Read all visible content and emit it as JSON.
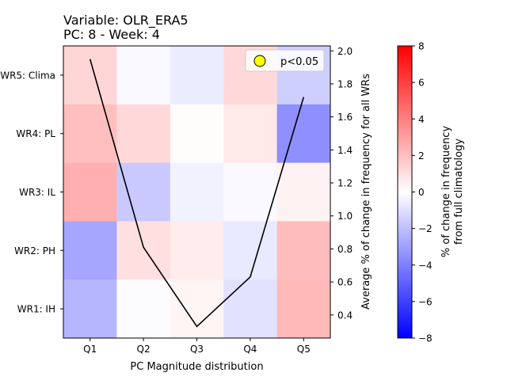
{
  "chart_data": {
    "type": "heatmap",
    "title_lines": [
      "Variable: OLR_ERA5",
      "PC: 8 - Week: 4"
    ],
    "xlabel": "PC Magnitude distribution",
    "categories": [
      "Q1",
      "Q2",
      "Q3",
      "Q4",
      "Q5"
    ],
    "rows": [
      "WR5: Clima",
      "WR4: PL",
      "WR3: IL",
      "WR2: PH",
      "WR1: IH"
    ],
    "values": [
      [
        1.3,
        -0.2,
        -0.6,
        1.2,
        -1.5
      ],
      [
        2.0,
        1.2,
        0.1,
        0.7,
        -3.5
      ],
      [
        2.5,
        -1.7,
        -0.4,
        -0.2,
        0.4
      ],
      [
        -2.8,
        1.0,
        0.6,
        -0.7,
        2.1
      ],
      [
        -2.3,
        -0.1,
        0.3,
        -0.9,
        2.2
      ]
    ],
    "colorbar": {
      "label_lines": [
        "% of change in frequency",
        "from full climatology"
      ],
      "min": -8,
      "max": 8,
      "ticks": [
        -8,
        -6,
        -4,
        -2,
        0,
        2,
        4,
        6,
        8
      ],
      "low_color": "#0000ff",
      "mid_color": "#ffffff",
      "high_color": "#ff0000"
    },
    "line_series": {
      "ylabel": "Average % of change in frequency for all WRs",
      "x": [
        "Q1",
        "Q2",
        "Q3",
        "Q4",
        "Q5"
      ],
      "y": [
        1.95,
        0.81,
        0.33,
        0.63,
        1.72
      ],
      "ylim": [
        0.26,
        2.03
      ],
      "yticks": [
        0.4,
        0.6,
        0.8,
        1.0,
        1.2,
        1.4,
        1.6,
        1.8,
        2.0
      ],
      "color": "#000000"
    },
    "legend": {
      "label": "p<0.05",
      "marker_color": "#ffff00",
      "position": "top-right"
    }
  }
}
